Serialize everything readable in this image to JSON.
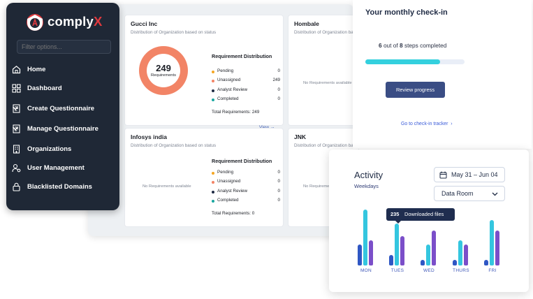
{
  "sidebar": {
    "brand_main": "comply",
    "brand_accent": "X",
    "filter_placeholder": "Filter options...",
    "items": [
      {
        "label": "Home",
        "icon": "home-icon"
      },
      {
        "label": "Dashboard",
        "icon": "dashboard-icon"
      },
      {
        "label": "Create Questionnaire",
        "icon": "document-icon",
        "expandable": true
      },
      {
        "label": "Manage Questionnaire",
        "icon": "document-icon",
        "expandable": true
      },
      {
        "label": "Organizations",
        "icon": "building-icon"
      },
      {
        "label": "User Management",
        "icon": "user-gear-icon"
      },
      {
        "label": "Blacklisted Domains",
        "icon": "lock-icon"
      }
    ]
  },
  "org_cards": [
    {
      "name": "Gucci Inc",
      "subtitle": "Distribution of Organization based on status",
      "donut_value": "249",
      "donut_label": "Requirements",
      "dist_title": "Requirement Distribution",
      "rows": [
        {
          "label": "Pending",
          "value": "0",
          "color": "#f5a623"
        },
        {
          "label": "Unassigned",
          "value": "249",
          "color": "#f28466"
        },
        {
          "label": "Analyst Review",
          "value": "0",
          "color": "#1f2b44"
        },
        {
          "label": "Completed",
          "value": "0",
          "color": "#1aa7a0"
        }
      ],
      "total": "Total Requirements: 249",
      "view_link": "View"
    },
    {
      "name": "Hombale",
      "subtitle": "Distribution of Organization based on status",
      "empty_text": "No Requirements available"
    },
    {
      "name": "Infosys india",
      "subtitle": "Distribution of Organization based on status",
      "empty_text": "No Requirements available",
      "dist_title": "Requirement Distribution",
      "rows": [
        {
          "label": "Pending",
          "value": "0",
          "color": "#f5a623"
        },
        {
          "label": "Unassigned",
          "value": "0",
          "color": "#f28466"
        },
        {
          "label": "Analyst Review",
          "value": "0",
          "color": "#1f2b44"
        },
        {
          "label": "Completed",
          "value": "0",
          "color": "#1aa7a0"
        }
      ],
      "total": "Total Requirements: 0"
    },
    {
      "name": "JNK",
      "subtitle": "Distribution of Organization based on status",
      "empty_text": "No Requireme"
    }
  ],
  "checkin": {
    "title": "Your monthly check-in",
    "steps_done": "6",
    "steps_mid": "out of",
    "steps_total": "8",
    "steps_suffix": "steps completed",
    "progress_fraction": 0.75,
    "button": "Review progress",
    "link": "Go to check-in tracker"
  },
  "activity": {
    "title": "Activity",
    "subtitle": "Weekdays",
    "date_range": "May 31 – Jun 04",
    "location": "Data Room",
    "tooltip_value": "235",
    "tooltip_label": "Downloaded files",
    "days": [
      "MON",
      "TUES",
      "WED",
      "THURS",
      "FRI"
    ],
    "series_colors": [
      "#2f57c4",
      "#34c6df",
      "#7b4fc9"
    ]
  }
}
